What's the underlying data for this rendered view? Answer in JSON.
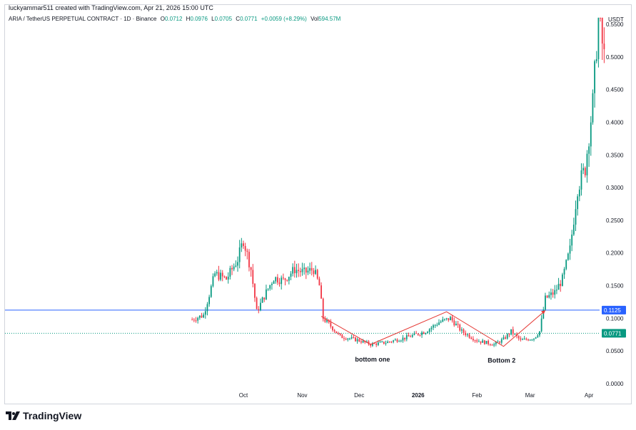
{
  "header": {
    "created_by": "luckyammar511 created with TradingView.com, Apr 21, 2026 15:00 UTC"
  },
  "symbol": {
    "name": "ARIA / TetherUS PERPETUAL CONTRACT · 1D · Binance",
    "o_label": "O",
    "o_value": "0.0712",
    "h_label": "H",
    "h_value": "0.0976",
    "l_label": "L",
    "l_value": "0.0705",
    "c_label": "C",
    "c_value": "0.0771",
    "change": "+0.0059 (+8.29%)",
    "vol_label": "Vol",
    "vol_value": "594.57M"
  },
  "footer": {
    "brand": "TradingView"
  },
  "colors": {
    "up": "#089981",
    "down": "#f23645",
    "hline": "#2962ff",
    "drawing": "#e53935"
  },
  "chart_data": {
    "type": "candlestick",
    "currency_label": "USDT",
    "y_ticks": [
      "0.0000",
      "0.0500",
      "0.1000",
      "0.1500",
      "0.2000",
      "0.2500",
      "0.3000",
      "0.3500",
      "0.4000",
      "0.4500",
      "0.5000",
      "0.5500"
    ],
    "ylim": [
      0,
      0.55
    ],
    "x_ticks": [
      {
        "label": "Oct",
        "date": "2025-10-01"
      },
      {
        "label": "Nov",
        "date": "2025-11-01"
      },
      {
        "label": "Dec",
        "date": "2025-12-01"
      },
      {
        "label": "2026",
        "date": "2026-01-01"
      },
      {
        "label": "Feb",
        "date": "2026-02-01"
      },
      {
        "label": "Mar",
        "date": "2026-03-01"
      },
      {
        "label": "Apr",
        "date": "2026-04-01"
      }
    ],
    "horizontal_line": {
      "value": 0.1125,
      "label": "0.1125"
    },
    "last_price": {
      "value": 0.0771,
      "label": "0.0771"
    },
    "annotations": [
      {
        "text": "bottom one",
        "date": "2025-12-08",
        "value": 0.045
      },
      {
        "text": "Bottom 2",
        "date": "2026-02-14",
        "value": 0.043
      }
    ],
    "pattern_line": [
      {
        "date": "2025-11-11",
        "value": 0.103
      },
      {
        "date": "2025-12-07",
        "value": 0.06
      },
      {
        "date": "2026-01-16",
        "value": 0.11
      },
      {
        "date": "2026-02-15",
        "value": 0.057
      },
      {
        "date": "2026-03-09",
        "value": 0.112
      }
    ],
    "anchors": [
      {
        "date": "2025-09-04",
        "value": 0.098
      },
      {
        "date": "2025-09-10",
        "value": 0.105
      },
      {
        "date": "2025-09-16",
        "value": 0.168
      },
      {
        "date": "2025-09-22",
        "value": 0.16
      },
      {
        "date": "2025-09-28",
        "value": 0.19
      },
      {
        "date": "2025-10-01",
        "value": 0.22
      },
      {
        "date": "2025-10-05",
        "value": 0.175
      },
      {
        "date": "2025-10-08",
        "value": 0.11
      },
      {
        "date": "2025-10-13",
        "value": 0.14
      },
      {
        "date": "2025-10-17",
        "value": 0.162
      },
      {
        "date": "2025-10-22",
        "value": 0.158
      },
      {
        "date": "2025-10-28",
        "value": 0.175
      },
      {
        "date": "2025-11-02",
        "value": 0.17
      },
      {
        "date": "2025-11-07",
        "value": 0.175
      },
      {
        "date": "2025-11-10",
        "value": 0.15
      },
      {
        "date": "2025-11-12",
        "value": 0.1
      },
      {
        "date": "2025-11-17",
        "value": 0.085
      },
      {
        "date": "2025-11-21",
        "value": 0.072
      },
      {
        "date": "2025-11-25",
        "value": 0.07
      },
      {
        "date": "2025-12-01",
        "value": 0.066
      },
      {
        "date": "2025-12-07",
        "value": 0.06
      },
      {
        "date": "2025-12-15",
        "value": 0.063
      },
      {
        "date": "2025-12-25",
        "value": 0.07
      },
      {
        "date": "2026-01-05",
        "value": 0.08
      },
      {
        "date": "2026-01-12",
        "value": 0.094
      },
      {
        "date": "2026-01-18",
        "value": 0.1
      },
      {
        "date": "2026-01-24",
        "value": 0.08
      },
      {
        "date": "2026-02-01",
        "value": 0.066
      },
      {
        "date": "2026-02-10",
        "value": 0.06
      },
      {
        "date": "2026-02-15",
        "value": 0.068
      },
      {
        "date": "2026-02-19",
        "value": 0.08
      },
      {
        "date": "2026-02-24",
        "value": 0.066
      },
      {
        "date": "2026-03-03",
        "value": 0.07
      },
      {
        "date": "2026-03-06",
        "value": 0.08
      },
      {
        "date": "2026-03-09",
        "value": 0.13
      },
      {
        "date": "2026-03-14",
        "value": 0.14
      },
      {
        "date": "2026-03-18",
        "value": 0.16
      },
      {
        "date": "2026-03-22",
        "value": 0.205
      },
      {
        "date": "2026-03-26",
        "value": 0.3
      },
      {
        "date": "2026-03-30",
        "value": 0.33
      },
      {
        "date": "2026-04-03",
        "value": 0.43
      },
      {
        "date": "2026-04-06",
        "value": 0.56
      },
      {
        "date": "2026-04-09",
        "value": 0.5
      }
    ]
  }
}
